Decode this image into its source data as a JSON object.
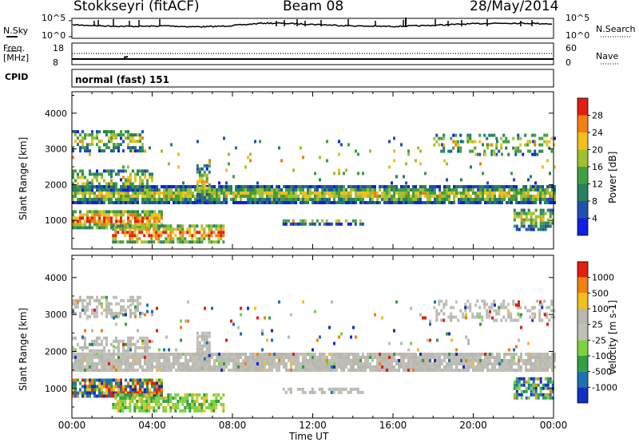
{
  "header": {
    "station": "Stokkseyri (fitACF)",
    "beam": "Beam 08",
    "date": "28/May/2014"
  },
  "nsky_panel": {
    "left_label": "N.Sky",
    "right_label": "N.Search",
    "left_ticks": [
      "10^5",
      "10^0"
    ],
    "right_ticks": [
      "10^5",
      "10^0"
    ]
  },
  "freq_panel": {
    "left_label": "Freq.",
    "left_unit": "[MHz]",
    "right_label": "Nave",
    "left_ticks": [
      "18",
      "8"
    ],
    "right_ticks": [
      "60",
      "0"
    ]
  },
  "cpid": {
    "label": "CPID",
    "program": "normal (fast) 151"
  },
  "chart_data": [
    {
      "type": "heatmap",
      "name": "power",
      "ylabel": "Slant Range [km]",
      "ylim": [
        200,
        4600
      ],
      "yticks": [
        "1000",
        "2000",
        "3000",
        "4000"
      ],
      "colorbar_label": "Power [dB]",
      "colorbar_ticks": [
        "4",
        "8",
        "12",
        "16",
        "20",
        "24",
        "28"
      ],
      "colors": [
        "#1020e0",
        "#2050b0",
        "#2a8060",
        "#40a040",
        "#a0c030",
        "#f0c020",
        "#f08010",
        "#e02010"
      ]
    },
    {
      "type": "heatmap",
      "name": "velocity",
      "ylabel": "Slant Range [km]",
      "ylim": [
        200,
        4600
      ],
      "yticks": [
        "1000",
        "2000",
        "3000",
        "4000"
      ],
      "colorbar_label": "Velocity [m s-1]",
      "colorbar_ticks": [
        "1000",
        "500",
        "100",
        "25",
        "-25",
        "-100",
        "-500",
        "-1000"
      ],
      "colors": [
        "#1030c0",
        "#2070b0",
        "#30a040",
        "#80d040",
        "#c0c0b8",
        "#b8b8b0",
        "#f0c020",
        "#f08010",
        "#e02010"
      ]
    }
  ],
  "xaxis": {
    "label": "Time UT",
    "ticks": [
      "00:00",
      "04:00",
      "08:00",
      "12:00",
      "16:00",
      "20:00",
      "00:00"
    ]
  }
}
